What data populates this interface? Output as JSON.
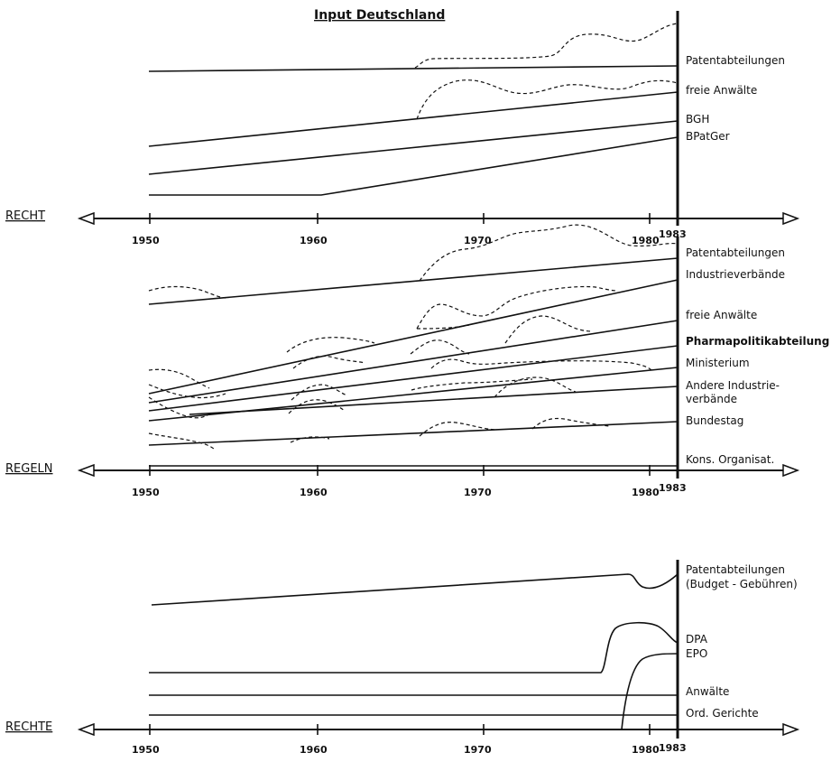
{
  "title": "Input Deutschland",
  "panels": [
    {
      "axis_name": "RECHT",
      "ticks": [
        "1950",
        "1960",
        "1970",
        "1980",
        "1983"
      ],
      "labels": [
        {
          "text": "Patentabteilungen",
          "bold": false
        },
        {
          "text": "freie Anwälte",
          "bold": false
        },
        {
          "text": "BGH",
          "bold": false
        },
        {
          "text": "BPatGer",
          "bold": false
        }
      ]
    },
    {
      "axis_name": "REGELN",
      "ticks": [
        "1950",
        "1960",
        "1970",
        "1980",
        "1983"
      ],
      "labels": [
        {
          "text": "Patentabteilungen",
          "bold": false
        },
        {
          "text": "Industrieverbände",
          "bold": false
        },
        {
          "text": "freie Anwälte",
          "bold": false
        },
        {
          "text": "Pharmapolitikabteilung",
          "bold": true
        },
        {
          "text": "Ministerium",
          "bold": false
        },
        {
          "text": "Andere Industrie-",
          "bold": false
        },
        {
          "text": "verbände",
          "bold": false
        },
        {
          "text": "Bundestag",
          "bold": false
        },
        {
          "text": "Kons. Organisat.",
          "bold": false
        }
      ]
    },
    {
      "axis_name": "RECHTE",
      "ticks": [
        "1950",
        "1960",
        "1970",
        "1980",
        "1983"
      ],
      "labels": [
        {
          "text": "Patentabteilungen",
          "bold": false
        },
        {
          "text": "(Budget - Gebühren)",
          "bold": false
        },
        {
          "text": "DPA",
          "bold": false
        },
        {
          "text": "EPO",
          "bold": false
        },
        {
          "text": "Anwälte",
          "bold": false
        },
        {
          "text": "Ord. Gerichte",
          "bold": false
        }
      ]
    }
  ]
}
